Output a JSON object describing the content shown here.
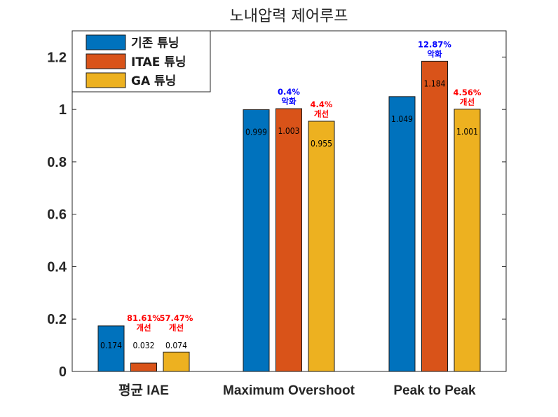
{
  "chart_data": {
    "type": "bar",
    "title": "노내압력 제어루프",
    "categories": [
      "평균 IAE",
      "Maximum Overshoot",
      "Peak to Peak"
    ],
    "series": [
      {
        "name": "기존 튜닝",
        "color": "#0072BD",
        "values": [
          0.174,
          0.999,
          1.049
        ],
        "labels": [
          "0.174",
          "0.999",
          "1.049"
        ]
      },
      {
        "name": "ITAE 튜닝",
        "color": "#D95319",
        "values": [
          0.032,
          1.003,
          1.184
        ],
        "labels": [
          "0.032",
          "1.003",
          "1.184"
        ]
      },
      {
        "name": "GA 튜닝",
        "color": "#EDB120",
        "values": [
          0.074,
          0.955,
          1.001
        ],
        "labels": [
          "0.074",
          "0.955",
          "1.001"
        ]
      }
    ],
    "ylim": [
      0,
      1.3
    ],
    "yticks": [
      "0",
      "0.2",
      "0.4",
      "0.6",
      "0.8",
      "1",
      "1.2"
    ],
    "xlabel": "",
    "ylabel": "",
    "grid": false,
    "legend": "top-left",
    "annotations": [
      {
        "category": 0,
        "series": 1,
        "lines": [
          "81.61%",
          "개선"
        ],
        "color": "#FF0000"
      },
      {
        "category": 0,
        "series": 2,
        "lines": [
          "57.47%",
          "개선"
        ],
        "color": "#FF0000"
      },
      {
        "category": 1,
        "series": 1,
        "lines": [
          "0.4%",
          "악화"
        ],
        "color": "#0000FF"
      },
      {
        "category": 1,
        "series": 2,
        "lines": [
          "4.4%",
          "개선"
        ],
        "color": "#FF0000"
      },
      {
        "category": 2,
        "series": 1,
        "lines": [
          "12.87%",
          "악화"
        ],
        "color": "#0000FF"
      },
      {
        "category": 2,
        "series": 2,
        "lines": [
          "4.56%",
          "개선"
        ],
        "color": "#FF0000"
      }
    ]
  }
}
